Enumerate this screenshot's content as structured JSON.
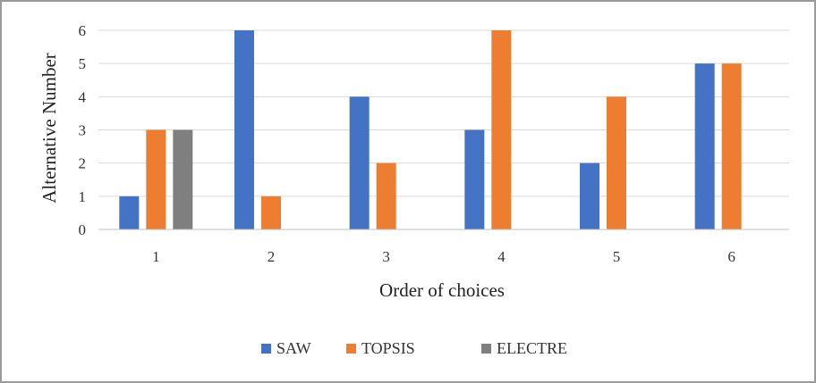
{
  "chart_data": {
    "type": "bar",
    "categories": [
      "1",
      "2",
      "3",
      "4",
      "5",
      "6"
    ],
    "series": [
      {
        "name": "SAW",
        "color": "#4472C4",
        "values": [
          1,
          6,
          4,
          3,
          2,
          5
        ]
      },
      {
        "name": "TOPSIS",
        "color": "#ED7D31",
        "values": [
          3,
          1,
          2,
          6,
          4,
          5
        ]
      },
      {
        "name": "ELECTRE",
        "color": "#7F7F7F",
        "values": [
          3,
          null,
          null,
          null,
          null,
          null
        ]
      }
    ],
    "xlabel": "Order of choices",
    "ylabel": "Alternative Number",
    "ylim": [
      0,
      6
    ],
    "yticks": [
      "0",
      "1",
      "2",
      "3",
      "4",
      "5",
      "6"
    ],
    "grid": true,
    "legend_position": "bottom"
  }
}
